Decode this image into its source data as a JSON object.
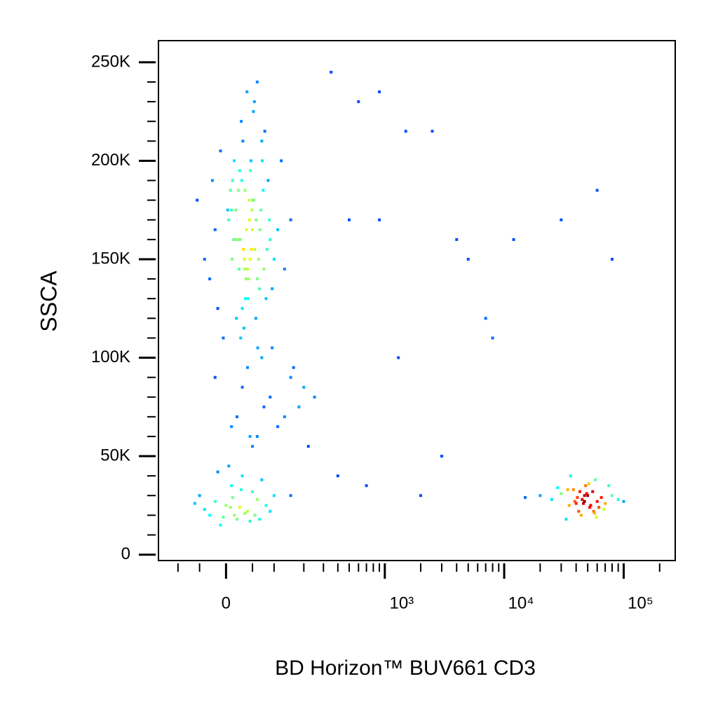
{
  "chart_data": {
    "type": "scatter",
    "xlabel": "BD Horizon™ BUV661 CD3",
    "ylabel": "SSCA",
    "x_scale": "biexponential",
    "xlim": [
      -160,
      270000
    ],
    "ylim": [
      -3000,
      261000
    ],
    "xticks": [
      0,
      {
        "value": 1000,
        "label": "10³"
      },
      {
        "value": 10000,
        "label": "10⁴"
      },
      {
        "value": 100000,
        "label": "10⁵"
      }
    ],
    "xminorticks": [
      -100,
      -50,
      50,
      100,
      200,
      300,
      400,
      500,
      600,
      700,
      800,
      900,
      2000,
      3000,
      4000,
      5000,
      6000,
      7000,
      8000,
      9000,
      20000,
      30000,
      40000,
      50000,
      60000,
      70000,
      80000,
      90000,
      200000
    ],
    "yticks": [
      0,
      {
        "value": 50000,
        "label": "50K"
      },
      {
        "value": 100000,
        "label": "100K"
      },
      {
        "value": 150000,
        "label": "150K"
      },
      {
        "value": 200000,
        "label": "200K"
      },
      {
        "value": 250000,
        "label": "250K"
      }
    ],
    "yminorticks": [
      10000,
      20000,
      30000,
      40000,
      60000,
      70000,
      80000,
      90000,
      110000,
      120000,
      130000,
      140000,
      160000,
      170000,
      180000,
      190000,
      210000,
      220000,
      230000,
      240000
    ],
    "density_colors": true,
    "x": [
      20,
      45,
      10,
      60,
      35,
      -20,
      80,
      55,
      25,
      40,
      5,
      70,
      30,
      50,
      15,
      -40,
      90,
      65,
      38,
      28,
      48,
      12,
      75,
      33,
      58,
      -10,
      42,
      22,
      85,
      52,
      18,
      63,
      36,
      8,
      110,
      27,
      47,
      -30,
      68,
      32,
      150,
      43,
      24,
      57,
      14,
      77,
      39,
      -55,
      95,
      50,
      29,
      61,
      11,
      44,
      120,
      35,
      -15,
      73,
      26,
      54,
      37,
      3,
      82,
      46,
      19,
      66,
      31,
      100,
      -25,
      53,
      41,
      16,
      88,
      34,
      60,
      23,
      130,
      49,
      -5,
      71,
      40,
      90,
      20,
      150,
      60,
      180,
      30,
      110,
      70,
      220,
      -20,
      130,
      50,
      95,
      250,
      10,
      75,
      160,
      45,
      200,
      -30,
      0,
      20,
      -50,
      40,
      10,
      60,
      -10,
      30,
      80,
      -40,
      15,
      50,
      5,
      100,
      -20,
      35,
      70,
      25,
      -5,
      45,
      -60,
      12,
      90,
      28,
      55,
      -15,
      8,
      65,
      150,
      45000,
      50000,
      40000,
      55000,
      35000,
      60000,
      48000,
      42000,
      65000,
      30000,
      52000,
      38000,
      70000,
      44000,
      58000,
      25000,
      80000,
      47000,
      33000,
      62000,
      49000,
      41000,
      56000,
      28000,
      75000,
      46000,
      36000,
      53000,
      90000,
      20000,
      43000,
      59000,
      39000,
      51000,
      15000,
      68000,
      47000,
      34000,
      57000,
      100000,
      600,
      900,
      1500,
      2500,
      4000,
      7000,
      900,
      1300,
      3000,
      500,
      5000,
      12000,
      30000,
      60000,
      80000,
      700,
      2000,
      350,
      400,
      8000
    ],
    "y": [
      160000,
      150000,
      175000,
      140000,
      185000,
      165000,
      130000,
      155000,
      195000,
      145000,
      170000,
      210000,
      125000,
      180000,
      200000,
      150000,
      160000,
      135000,
      165000,
      220000,
      155000,
      190000,
      145000,
      115000,
      170000,
      205000,
      140000,
      160000,
      190000,
      225000,
      175000,
      150000,
      130000,
      185000,
      165000,
      110000,
      200000,
      140000,
      175000,
      155000,
      170000,
      180000,
      145000,
      120000,
      160000,
      215000,
      235000,
      180000,
      135000,
      165000,
      190000,
      105000,
      150000,
      170000,
      200000,
      145000,
      125000,
      185000,
      160000,
      230000,
      140000,
      175000,
      155000,
      195000,
      120000,
      165000,
      210000,
      150000,
      190000,
      180000,
      130000,
      160000,
      170000,
      150000,
      240000,
      185000,
      145000,
      175000,
      110000,
      200000,
      95000,
      80000,
      70000,
      90000,
      60000,
      75000,
      85000,
      65000,
      100000,
      55000,
      90000,
      70000,
      55000,
      105000,
      80000,
      65000,
      75000,
      95000,
      60000,
      85000,
      20000,
      25000,
      18000,
      30000,
      22000,
      35000,
      28000,
      15000,
      40000,
      25000,
      23000,
      20000,
      32000,
      45000,
      30000,
      27000,
      21000,
      38000,
      24000,
      19000,
      17000,
      26000,
      29000,
      22000,
      33000,
      20000,
      42000,
      24000,
      18000,
      30000,
      28000,
      30000,
      26000,
      32000,
      25000,
      27000,
      35000,
      22000,
      29000,
      31000,
      24000,
      33000,
      26000,
      20000,
      38000,
      28000,
      30000,
      27000,
      18000,
      24000,
      31000,
      29000,
      22000,
      34000,
      35000,
      26000,
      40000,
      25000,
      28000,
      30000,
      32000,
      19000,
      27000,
      36000,
      29000,
      23000,
      30000,
      33000,
      21000,
      27000,
      230000,
      235000,
      215000,
      215000,
      160000,
      120000,
      170000,
      100000,
      50000,
      170000,
      150000,
      160000,
      170000,
      185000,
      150000,
      35000,
      30000,
      245000,
      40000,
      110000
    ]
  }
}
